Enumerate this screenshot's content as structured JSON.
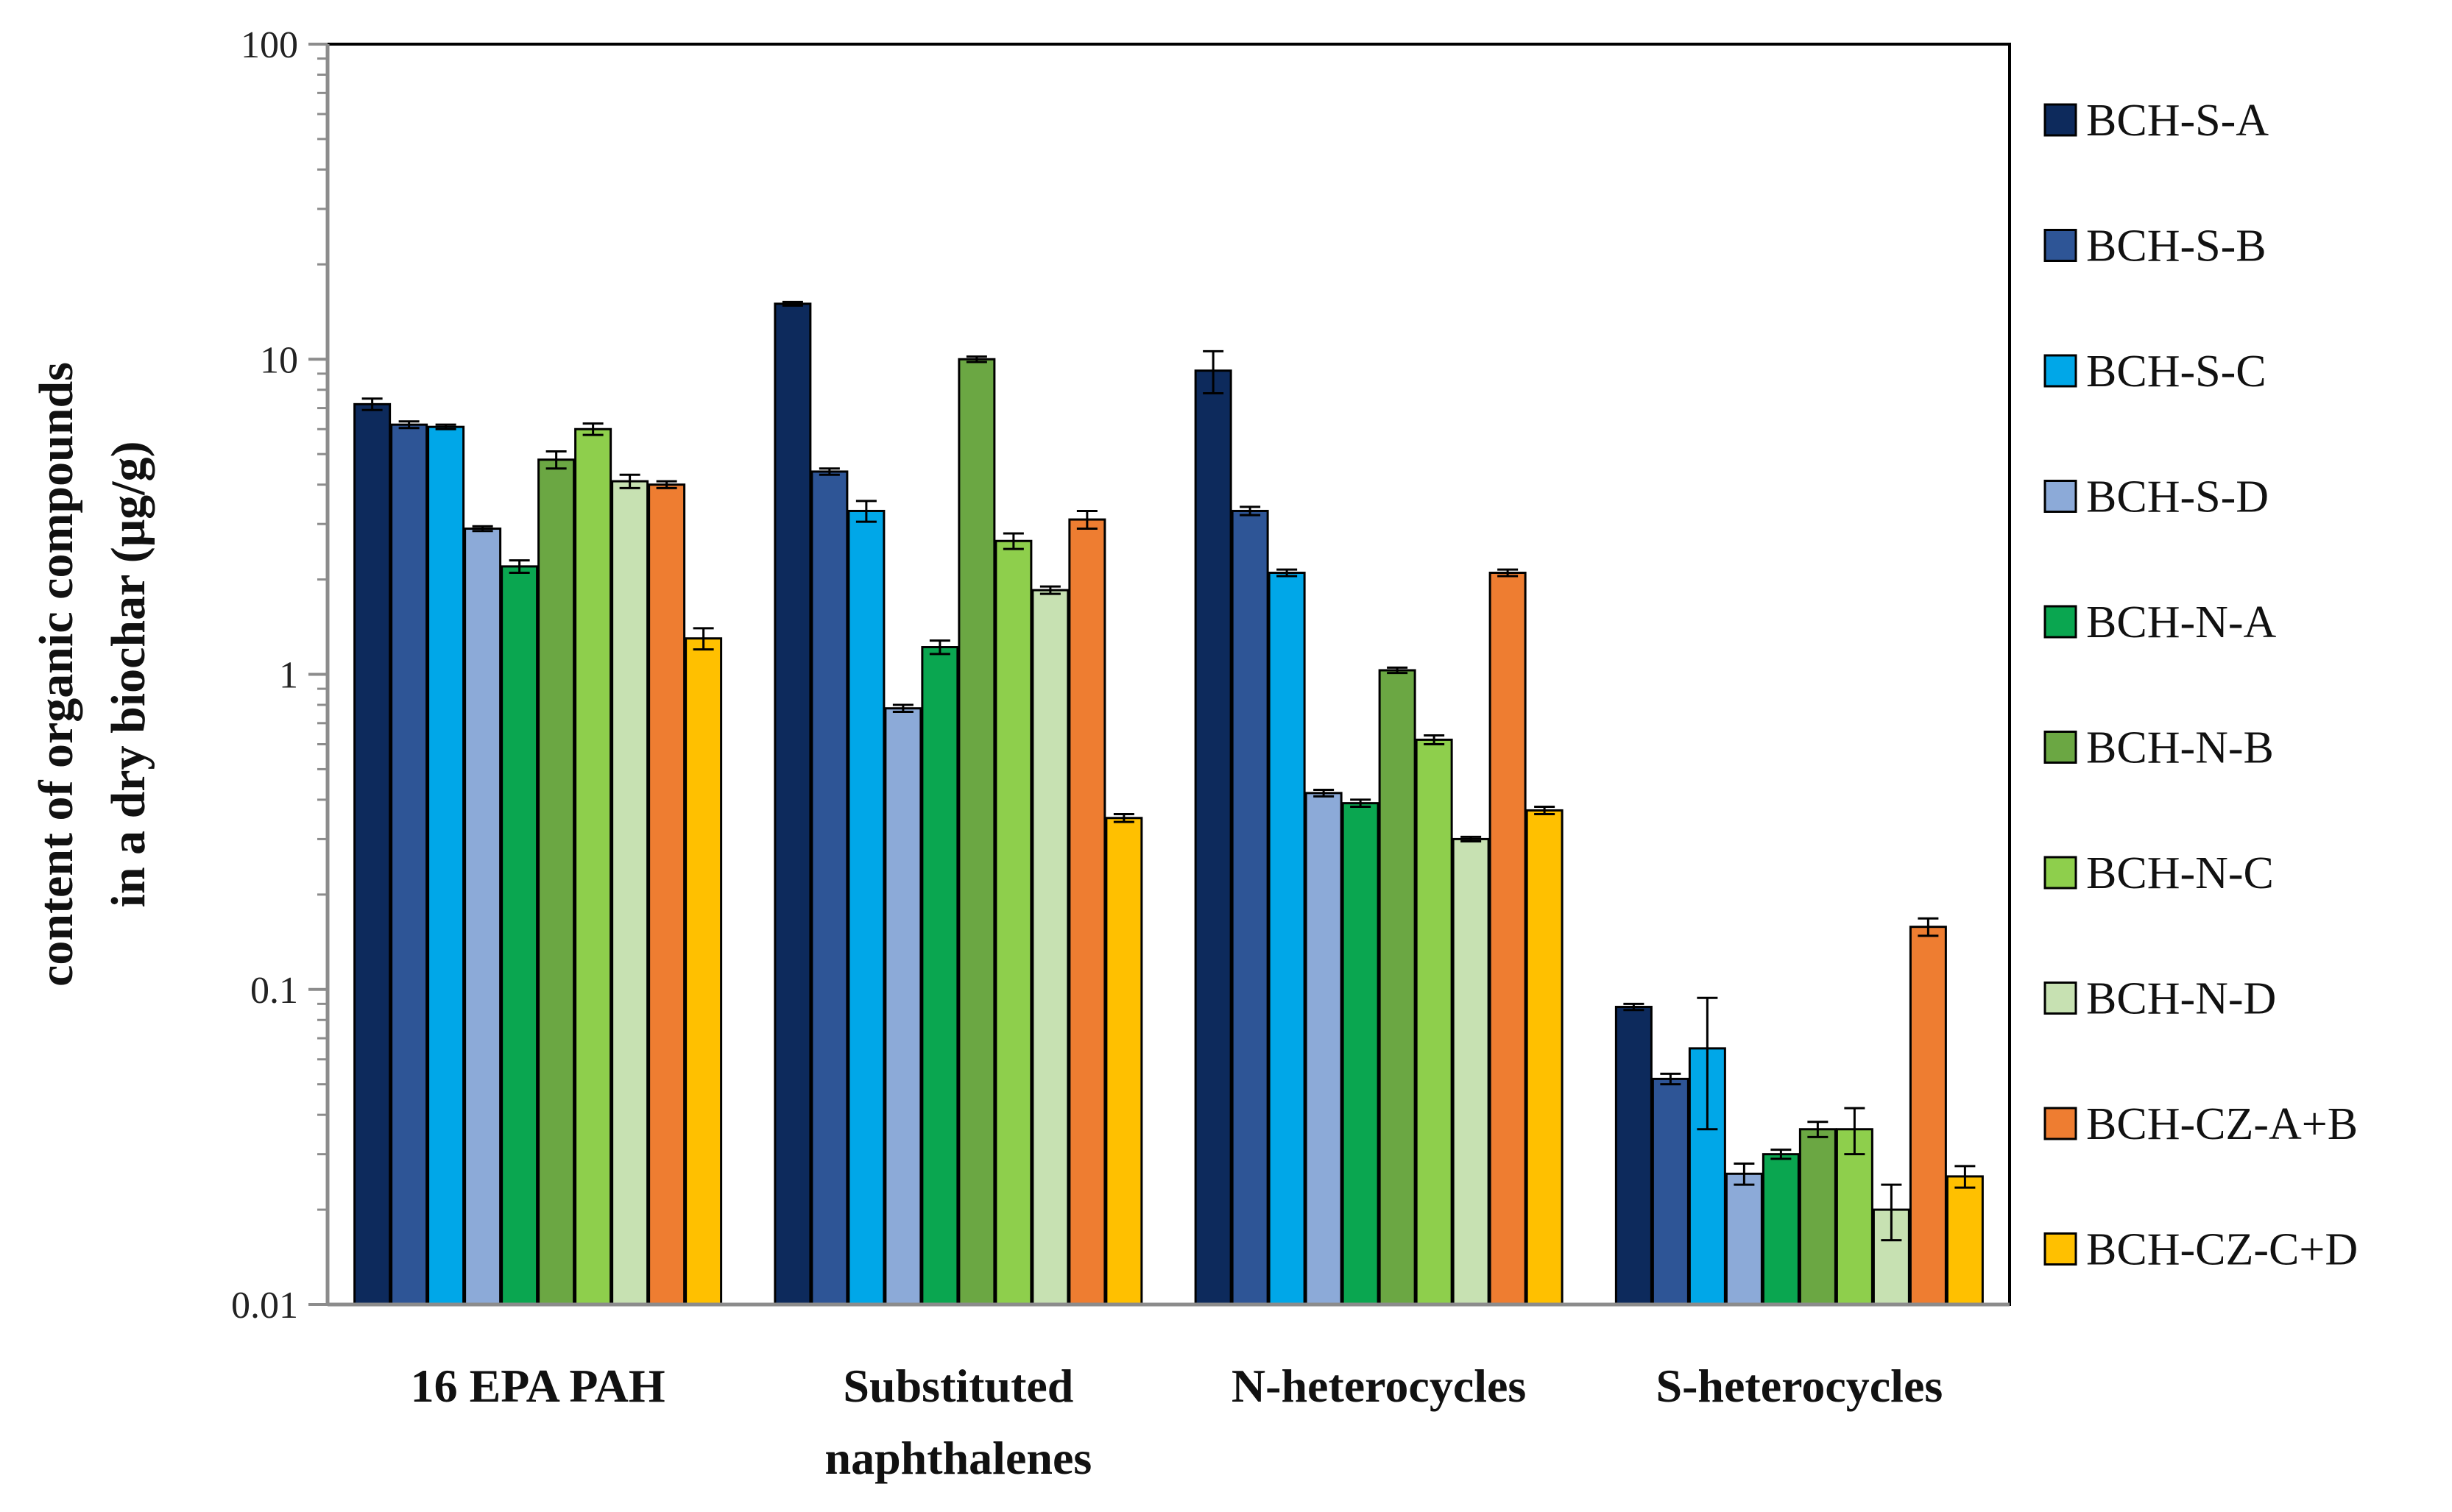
{
  "chart_data": {
    "type": "bar",
    "title": "",
    "xlabel": "",
    "ylabel_lines": [
      "content of organic compounds",
      "in a dry biochar (μg/g)"
    ],
    "yscale": "log",
    "ylim": [
      0.01,
      100
    ],
    "yticks": [
      {
        "value": 100,
        "label": "100"
      },
      {
        "value": 10,
        "label": "10"
      },
      {
        "value": 1,
        "label": "1"
      },
      {
        "value": 0.1,
        "label": "0.1"
      },
      {
        "value": 0.01,
        "label": "0.01"
      }
    ],
    "categories": [
      {
        "lines": [
          "16 EPA PAH"
        ]
      },
      {
        "lines": [
          "Substituted",
          "naphthalenes"
        ]
      },
      {
        "lines": [
          "N-heterocycles"
        ]
      },
      {
        "lines": [
          "S-heterocycles"
        ]
      }
    ],
    "legend_position": "right",
    "series": [
      {
        "name": "BCH-S-A",
        "color": "#0d2a5c",
        "values": [
          7.2,
          15.0,
          9.2,
          0.088
        ],
        "errors": [
          0.3,
          0.2,
          1.4,
          0.002
        ]
      },
      {
        "name": "BCH-S-B",
        "color": "#2e5596",
        "values": [
          6.2,
          4.4,
          3.3,
          0.052
        ],
        "errors": [
          0.15,
          0.1,
          0.1,
          0.002
        ]
      },
      {
        "name": "BCH-S-C",
        "color": "#00a7e8",
        "values": [
          6.1,
          3.3,
          2.1,
          0.065
        ],
        "errors": [
          0.1,
          0.25,
          0.05,
          0.029
        ]
      },
      {
        "name": "BCH-S-D",
        "color": "#8caad8",
        "values": [
          2.9,
          0.78,
          0.42,
          0.026
        ],
        "errors": [
          0.05,
          0.02,
          0.01,
          0.002
        ]
      },
      {
        "name": "BCH-N-A",
        "color": "#0aa650",
        "values": [
          2.2,
          1.22,
          0.39,
          0.03
        ],
        "errors": [
          0.1,
          0.06,
          0.01,
          0.001
        ]
      },
      {
        "name": "BCH-N-B",
        "color": "#6ba743",
        "values": [
          4.8,
          10.0,
          1.03,
          0.036
        ],
        "errors": [
          0.3,
          0.2,
          0.02,
          0.002
        ]
      },
      {
        "name": "BCH-N-C",
        "color": "#8ecf4c",
        "values": [
          6.0,
          2.65,
          0.62,
          0.036
        ],
        "errors": [
          0.25,
          0.15,
          0.02,
          0.006
        ]
      },
      {
        "name": "BCH-N-D",
        "color": "#c7e1b2",
        "values": [
          4.1,
          1.85,
          0.3,
          0.02
        ],
        "errors": [
          0.2,
          0.05,
          0.005,
          0.004
        ]
      },
      {
        "name": "BCH-CZ-A+B",
        "color": "#ee7d31",
        "values": [
          4.0,
          3.1,
          2.1,
          0.158
        ],
        "errors": [
          0.1,
          0.2,
          0.05,
          0.01
        ]
      },
      {
        "name": "BCH-CZ-C+D",
        "color": "#ffc000",
        "values": [
          1.3,
          0.35,
          0.37,
          0.0255
        ],
        "errors": [
          0.1,
          0.01,
          0.01,
          0.002
        ]
      }
    ]
  }
}
